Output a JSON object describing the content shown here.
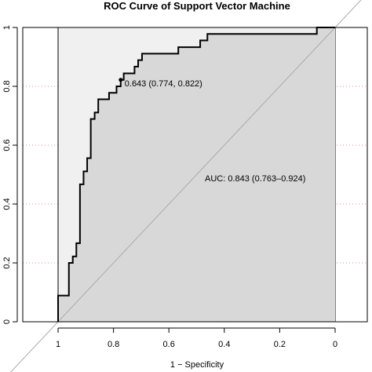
{
  "chart_data": {
    "type": "line",
    "title": "ROC Curve of Support Vector Machine",
    "xlabel": "1 − Specificity",
    "ylabel": "",
    "x_reversed": true,
    "xlim": [
      1.0,
      0.0
    ],
    "ylim": [
      0.0,
      1.0
    ],
    "x_ticks": [
      1,
      0.8,
      0.6,
      0.4,
      0.2,
      0
    ],
    "x_tick_labels": [
      "1",
      "0.8",
      "0.6",
      "0.4",
      "0.2",
      "0"
    ],
    "y_ticks": [
      0,
      0.2,
      0.4,
      0.6,
      0.8,
      1
    ],
    "y_tick_labels": [
      "0",
      "0.2",
      "0.4",
      "0.6",
      "0.8",
      "1"
    ],
    "grid": true,
    "grid_colors": {
      "vertical": "#66cccc",
      "horizontal": "#ee8888"
    },
    "colors": {
      "area_outer": "#f0f0f0",
      "area_auc": "#d8d8d8",
      "curve": "#000000",
      "diagonal": "#aaaaaa"
    },
    "series": [
      {
        "x": [
          1.0,
          1.0,
          0.961,
          0.961,
          0.947,
          0.947,
          0.934,
          0.934,
          0.921,
          0.921,
          0.908,
          0.908,
          0.895,
          0.895,
          0.882,
          0.882,
          0.868,
          0.868,
          0.855,
          0.855,
          0.842,
          0.842,
          0.816,
          0.816,
          0.789,
          0.789,
          0.774,
          0.774,
          0.763,
          0.763,
          0.737,
          0.737,
          0.724,
          0.724,
          0.711,
          0.711,
          0.697,
          0.697,
          0.684,
          0.684,
          0.566,
          0.566,
          0.487,
          0.487,
          0.461,
          0.461,
          0.066,
          0.066,
          0.0
        ],
        "y": [
          0.0,
          0.089,
          0.089,
          0.2,
          0.2,
          0.222,
          0.222,
          0.267,
          0.267,
          0.467,
          0.467,
          0.511,
          0.511,
          0.556,
          0.556,
          0.689,
          0.689,
          0.711,
          0.711,
          0.756,
          0.756,
          0.756,
          0.756,
          0.778,
          0.778,
          0.8,
          0.8,
          0.822,
          0.822,
          0.844,
          0.844,
          0.844,
          0.844,
          0.867,
          0.867,
          0.889,
          0.889,
          0.911,
          0.911,
          0.911,
          0.911,
          0.933,
          0.933,
          0.956,
          0.956,
          0.978,
          0.978,
          1.0,
          1.0
        ]
      }
    ],
    "annotations": [
      {
        "x": 0.774,
        "y": 0.822,
        "text": "0.643 (0.774, 0.822)"
      },
      {
        "text": "AUC: 0.843 (0.763–0.924)"
      }
    ]
  }
}
